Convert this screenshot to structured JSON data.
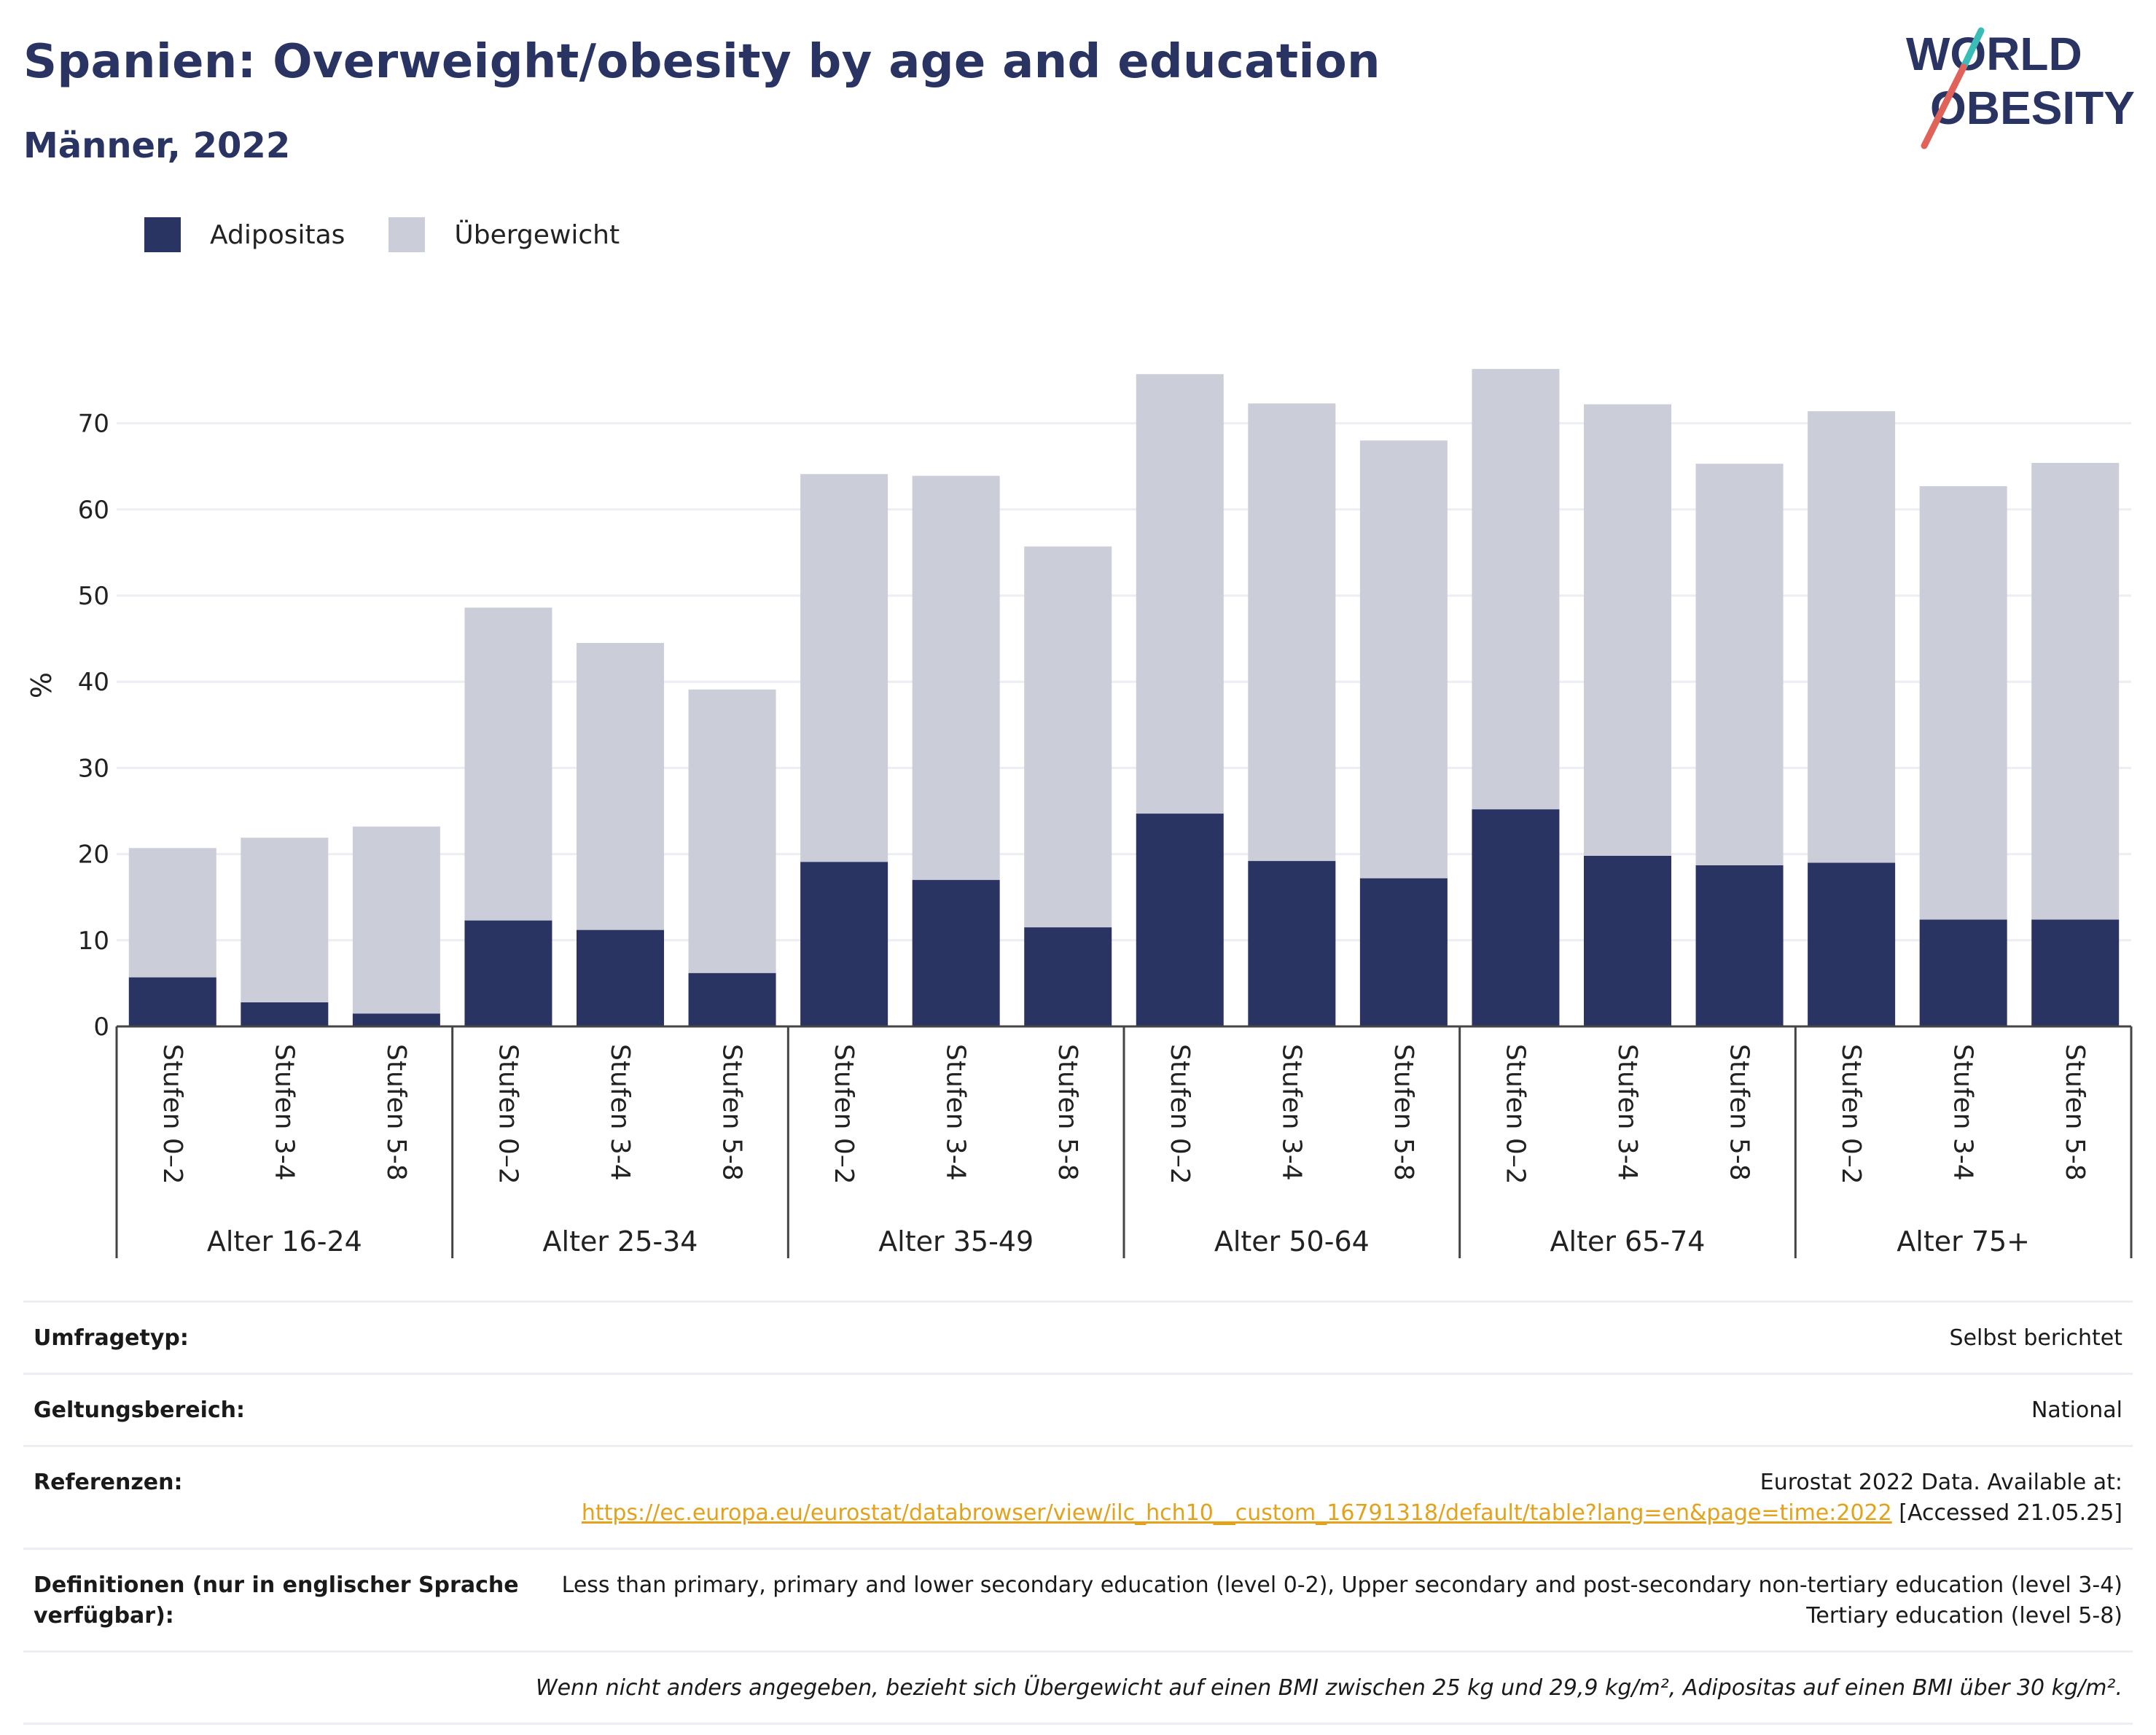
{
  "header": {
    "title": "Spanien: Overweight/obesity by age and education",
    "subtitle": "Männer, 2022"
  },
  "logo": {
    "line1": "WORLD",
    "line2": "OBESITY"
  },
  "legend": {
    "obesity_label": "Adipositas",
    "overweight_label": "Übergewicht"
  },
  "colors": {
    "obesity": "#2a3463",
    "overweight": "#cbcdd8",
    "title": "#2a3463",
    "link": "#e2a21c"
  },
  "chart_data": {
    "type": "bar",
    "stacked": true,
    "ylabel": "%",
    "ylim": [
      0,
      80
    ],
    "yticks": [
      0,
      10,
      20,
      30,
      40,
      50,
      60,
      70
    ],
    "grid": true,
    "legend_position": "top-left",
    "groups": [
      {
        "label": "Alter 16-24",
        "categories": [
          "Stufen 0–2",
          "Stufen 3-4",
          "Stufen 5-8"
        ]
      },
      {
        "label": "Alter 25-34",
        "categories": [
          "Stufen 0–2",
          "Stufen 3-4",
          "Stufen 5-8"
        ]
      },
      {
        "label": "Alter 35-49",
        "categories": [
          "Stufen 0–2",
          "Stufen 3-4",
          "Stufen 5-8"
        ]
      },
      {
        "label": "Alter 50-64",
        "categories": [
          "Stufen 0–2",
          "Stufen 3-4",
          "Stufen 5-8"
        ]
      },
      {
        "label": "Alter 65-74",
        "categories": [
          "Stufen 0–2",
          "Stufen 3-4",
          "Stufen 5-8"
        ]
      },
      {
        "label": "Alter 75+",
        "categories": [
          "Stufen 0–2",
          "Stufen 3-4",
          "Stufen 5-8"
        ]
      }
    ],
    "series": [
      {
        "name": "Adipositas",
        "values": [
          5.7,
          2.8,
          1.5,
          12.3,
          11.2,
          6.2,
          19.1,
          17.0,
          11.5,
          24.7,
          19.2,
          17.2,
          25.2,
          19.8,
          18.7,
          19.0,
          12.4,
          12.4
        ]
      },
      {
        "name": "Übergewicht",
        "values": [
          15.0,
          19.1,
          21.7,
          36.3,
          33.3,
          32.9,
          45.0,
          46.9,
          44.2,
          51.0,
          53.1,
          50.8,
          51.1,
          52.4,
          46.6,
          52.4,
          50.3,
          53.0
        ]
      }
    ]
  },
  "meta": {
    "survey_type_label": "Umfragetyp:",
    "survey_type_value": "Selbst berichtet",
    "coverage_label": "Geltungsbereich:",
    "coverage_value": "National",
    "references_label": "Referenzen:",
    "references_line1": "Eurostat 2022 Data. Available at:",
    "references_url": "https://ec.europa.eu/eurostat/databrowser/view/ilc_hch10__custom_16791318/default/table?lang=en&page=time:2022",
    "references_accessed": "[Accessed 21.05.25]",
    "definitions_label": "Definitionen (nur in englischer Sprache verfügbar):",
    "definitions_value": "Less than primary, primary and lower secondary education (level 0-2), Upper secondary and post-secondary non-tertiary education (level 3-4) Tertiary education (level 5-8)",
    "footnote": "Wenn nicht anders angegeben, bezieht sich Übergewicht auf einen BMI zwischen 25 kg und 29,9 kg/m², Adipositas auf einen BMI über 30 kg/m²."
  }
}
